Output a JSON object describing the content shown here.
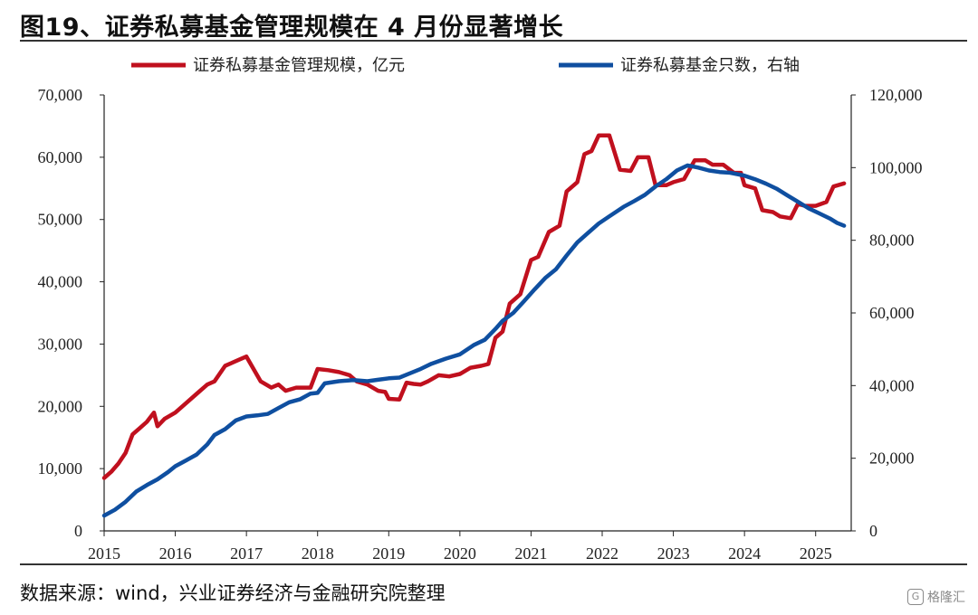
{
  "title": "图19、证券私募基金管理规模在 4 月份显著增长",
  "source": "数据来源：wind，兴业证券经济与金融研究院整理",
  "watermark": "格隆汇",
  "colors": {
    "scale": "#c0101e",
    "count": "#0f4fa0"
  },
  "chart_data": {
    "type": "line",
    "title": "",
    "x_ticks": [
      "2015",
      "2016",
      "2017",
      "2018",
      "2019",
      "2020",
      "2021",
      "2022",
      "2023",
      "2024",
      "2025"
    ],
    "y_left": {
      "label": "",
      "ylim": [
        0,
        70000
      ],
      "ticks": [
        "70,000",
        "60,000",
        "50,000",
        "40,000",
        "30,000",
        "20,000",
        "10,000",
        "0"
      ]
    },
    "y_right": {
      "label": "",
      "ylim": [
        0,
        120000
      ],
      "ticks": [
        "120,000",
        "100,000",
        "80,000",
        "60,000",
        "40,000",
        "20,000",
        "0"
      ]
    },
    "legend_position": "top",
    "series": [
      {
        "name": "证券私募基金管理规模，亿元",
        "axis": "left",
        "points": [
          [
            2015.0,
            8500
          ],
          [
            2015.1,
            9500
          ],
          [
            2015.2,
            10800
          ],
          [
            2015.3,
            12500
          ],
          [
            2015.4,
            15500
          ],
          [
            2015.5,
            16500
          ],
          [
            2015.6,
            17500
          ],
          [
            2015.7,
            19000
          ],
          [
            2015.75,
            16800
          ],
          [
            2015.85,
            18000
          ],
          [
            2016.0,
            19000
          ],
          [
            2016.15,
            20500
          ],
          [
            2016.3,
            22000
          ],
          [
            2016.45,
            23500
          ],
          [
            2016.55,
            24000
          ],
          [
            2016.7,
            26500
          ],
          [
            2016.8,
            27000
          ],
          [
            2016.9,
            27500
          ],
          [
            2017.0,
            28000
          ],
          [
            2017.1,
            26000
          ],
          [
            2017.2,
            24000
          ],
          [
            2017.35,
            23000
          ],
          [
            2017.45,
            23500
          ],
          [
            2017.55,
            22500
          ],
          [
            2017.7,
            23000
          ],
          [
            2017.9,
            23000
          ],
          [
            2018.0,
            26000
          ],
          [
            2018.15,
            25800
          ],
          [
            2018.3,
            25500
          ],
          [
            2018.45,
            25000
          ],
          [
            2018.55,
            24000
          ],
          [
            2018.7,
            23500
          ],
          [
            2018.85,
            22500
          ],
          [
            2018.95,
            22300
          ],
          [
            2019.0,
            21200
          ],
          [
            2019.15,
            21100
          ],
          [
            2019.25,
            23800
          ],
          [
            2019.35,
            23600
          ],
          [
            2019.45,
            23500
          ],
          [
            2019.55,
            24000
          ],
          [
            2019.7,
            25000
          ],
          [
            2019.85,
            24800
          ],
          [
            2020.0,
            25200
          ],
          [
            2020.15,
            26200
          ],
          [
            2020.3,
            26500
          ],
          [
            2020.4,
            26800
          ],
          [
            2020.5,
            31000
          ],
          [
            2020.6,
            32000
          ],
          [
            2020.7,
            36500
          ],
          [
            2020.85,
            38000
          ],
          [
            2021.0,
            43500
          ],
          [
            2021.1,
            44000
          ],
          [
            2021.25,
            48000
          ],
          [
            2021.4,
            49000
          ],
          [
            2021.5,
            54500
          ],
          [
            2021.65,
            56000
          ],
          [
            2021.75,
            60500
          ],
          [
            2021.85,
            61000
          ],
          [
            2021.95,
            63500
          ],
          [
            2022.1,
            63500
          ],
          [
            2022.25,
            58000
          ],
          [
            2022.4,
            57800
          ],
          [
            2022.5,
            60000
          ],
          [
            2022.65,
            60000
          ],
          [
            2022.75,
            55500
          ],
          [
            2022.9,
            55500
          ],
          [
            2023.0,
            56000
          ],
          [
            2023.15,
            56500
          ],
          [
            2023.3,
            59500
          ],
          [
            2023.45,
            59500
          ],
          [
            2023.55,
            58800
          ],
          [
            2023.7,
            58800
          ],
          [
            2023.85,
            57500
          ],
          [
            2023.95,
            57500
          ],
          [
            2024.0,
            55500
          ],
          [
            2024.15,
            55000
          ],
          [
            2024.25,
            51500
          ],
          [
            2024.4,
            51200
          ],
          [
            2024.5,
            50500
          ],
          [
            2024.65,
            50200
          ],
          [
            2024.75,
            52500
          ],
          [
            2024.85,
            52200
          ],
          [
            2025.0,
            52200
          ],
          [
            2025.15,
            52800
          ],
          [
            2025.25,
            55300
          ],
          [
            2025.4,
            55800
          ]
        ]
      },
      {
        "name": "证券私募基金只数，右轴",
        "axis": "right",
        "points": [
          [
            2015.0,
            4200
          ],
          [
            2015.15,
            5800
          ],
          [
            2015.3,
            8000
          ],
          [
            2015.45,
            10800
          ],
          [
            2015.6,
            12600
          ],
          [
            2015.75,
            14200
          ],
          [
            2015.9,
            16200
          ],
          [
            2016.0,
            17800
          ],
          [
            2016.15,
            19400
          ],
          [
            2016.3,
            21000
          ],
          [
            2016.45,
            23800
          ],
          [
            2016.55,
            26400
          ],
          [
            2016.7,
            28000
          ],
          [
            2016.85,
            30400
          ],
          [
            2017.0,
            31500
          ],
          [
            2017.15,
            31800
          ],
          [
            2017.3,
            32200
          ],
          [
            2017.45,
            33800
          ],
          [
            2017.6,
            35400
          ],
          [
            2017.75,
            36200
          ],
          [
            2017.9,
            37800
          ],
          [
            2018.0,
            38000
          ],
          [
            2018.1,
            40600
          ],
          [
            2018.3,
            41200
          ],
          [
            2018.5,
            41500
          ],
          [
            2018.7,
            41200
          ],
          [
            2018.85,
            41600
          ],
          [
            2019.0,
            42000
          ],
          [
            2019.15,
            42200
          ],
          [
            2019.3,
            43400
          ],
          [
            2019.45,
            44600
          ],
          [
            2019.6,
            46000
          ],
          [
            2019.8,
            47400
          ],
          [
            2020.0,
            48600
          ],
          [
            2020.2,
            51200
          ],
          [
            2020.35,
            52600
          ],
          [
            2020.5,
            55600
          ],
          [
            2020.6,
            57800
          ],
          [
            2020.75,
            60000
          ],
          [
            2020.9,
            63200
          ],
          [
            2021.05,
            66500
          ],
          [
            2021.2,
            69600
          ],
          [
            2021.35,
            72000
          ],
          [
            2021.5,
            75800
          ],
          [
            2021.65,
            79400
          ],
          [
            2021.8,
            82000
          ],
          [
            2021.95,
            84600
          ],
          [
            2022.1,
            86600
          ],
          [
            2022.3,
            89200
          ],
          [
            2022.45,
            90800
          ],
          [
            2022.6,
            92500
          ],
          [
            2022.75,
            94800
          ],
          [
            2022.9,
            96800
          ],
          [
            2023.05,
            99200
          ],
          [
            2023.2,
            100600
          ],
          [
            2023.35,
            100000
          ],
          [
            2023.5,
            99200
          ],
          [
            2023.65,
            98800
          ],
          [
            2023.8,
            98600
          ],
          [
            2024.0,
            97800
          ],
          [
            2024.15,
            96800
          ],
          [
            2024.3,
            95600
          ],
          [
            2024.45,
            94200
          ],
          [
            2024.6,
            92400
          ],
          [
            2024.75,
            90600
          ],
          [
            2024.9,
            88800
          ],
          [
            2025.05,
            87400
          ],
          [
            2025.2,
            86000
          ],
          [
            2025.3,
            84800
          ],
          [
            2025.4,
            84000
          ]
        ]
      }
    ]
  }
}
